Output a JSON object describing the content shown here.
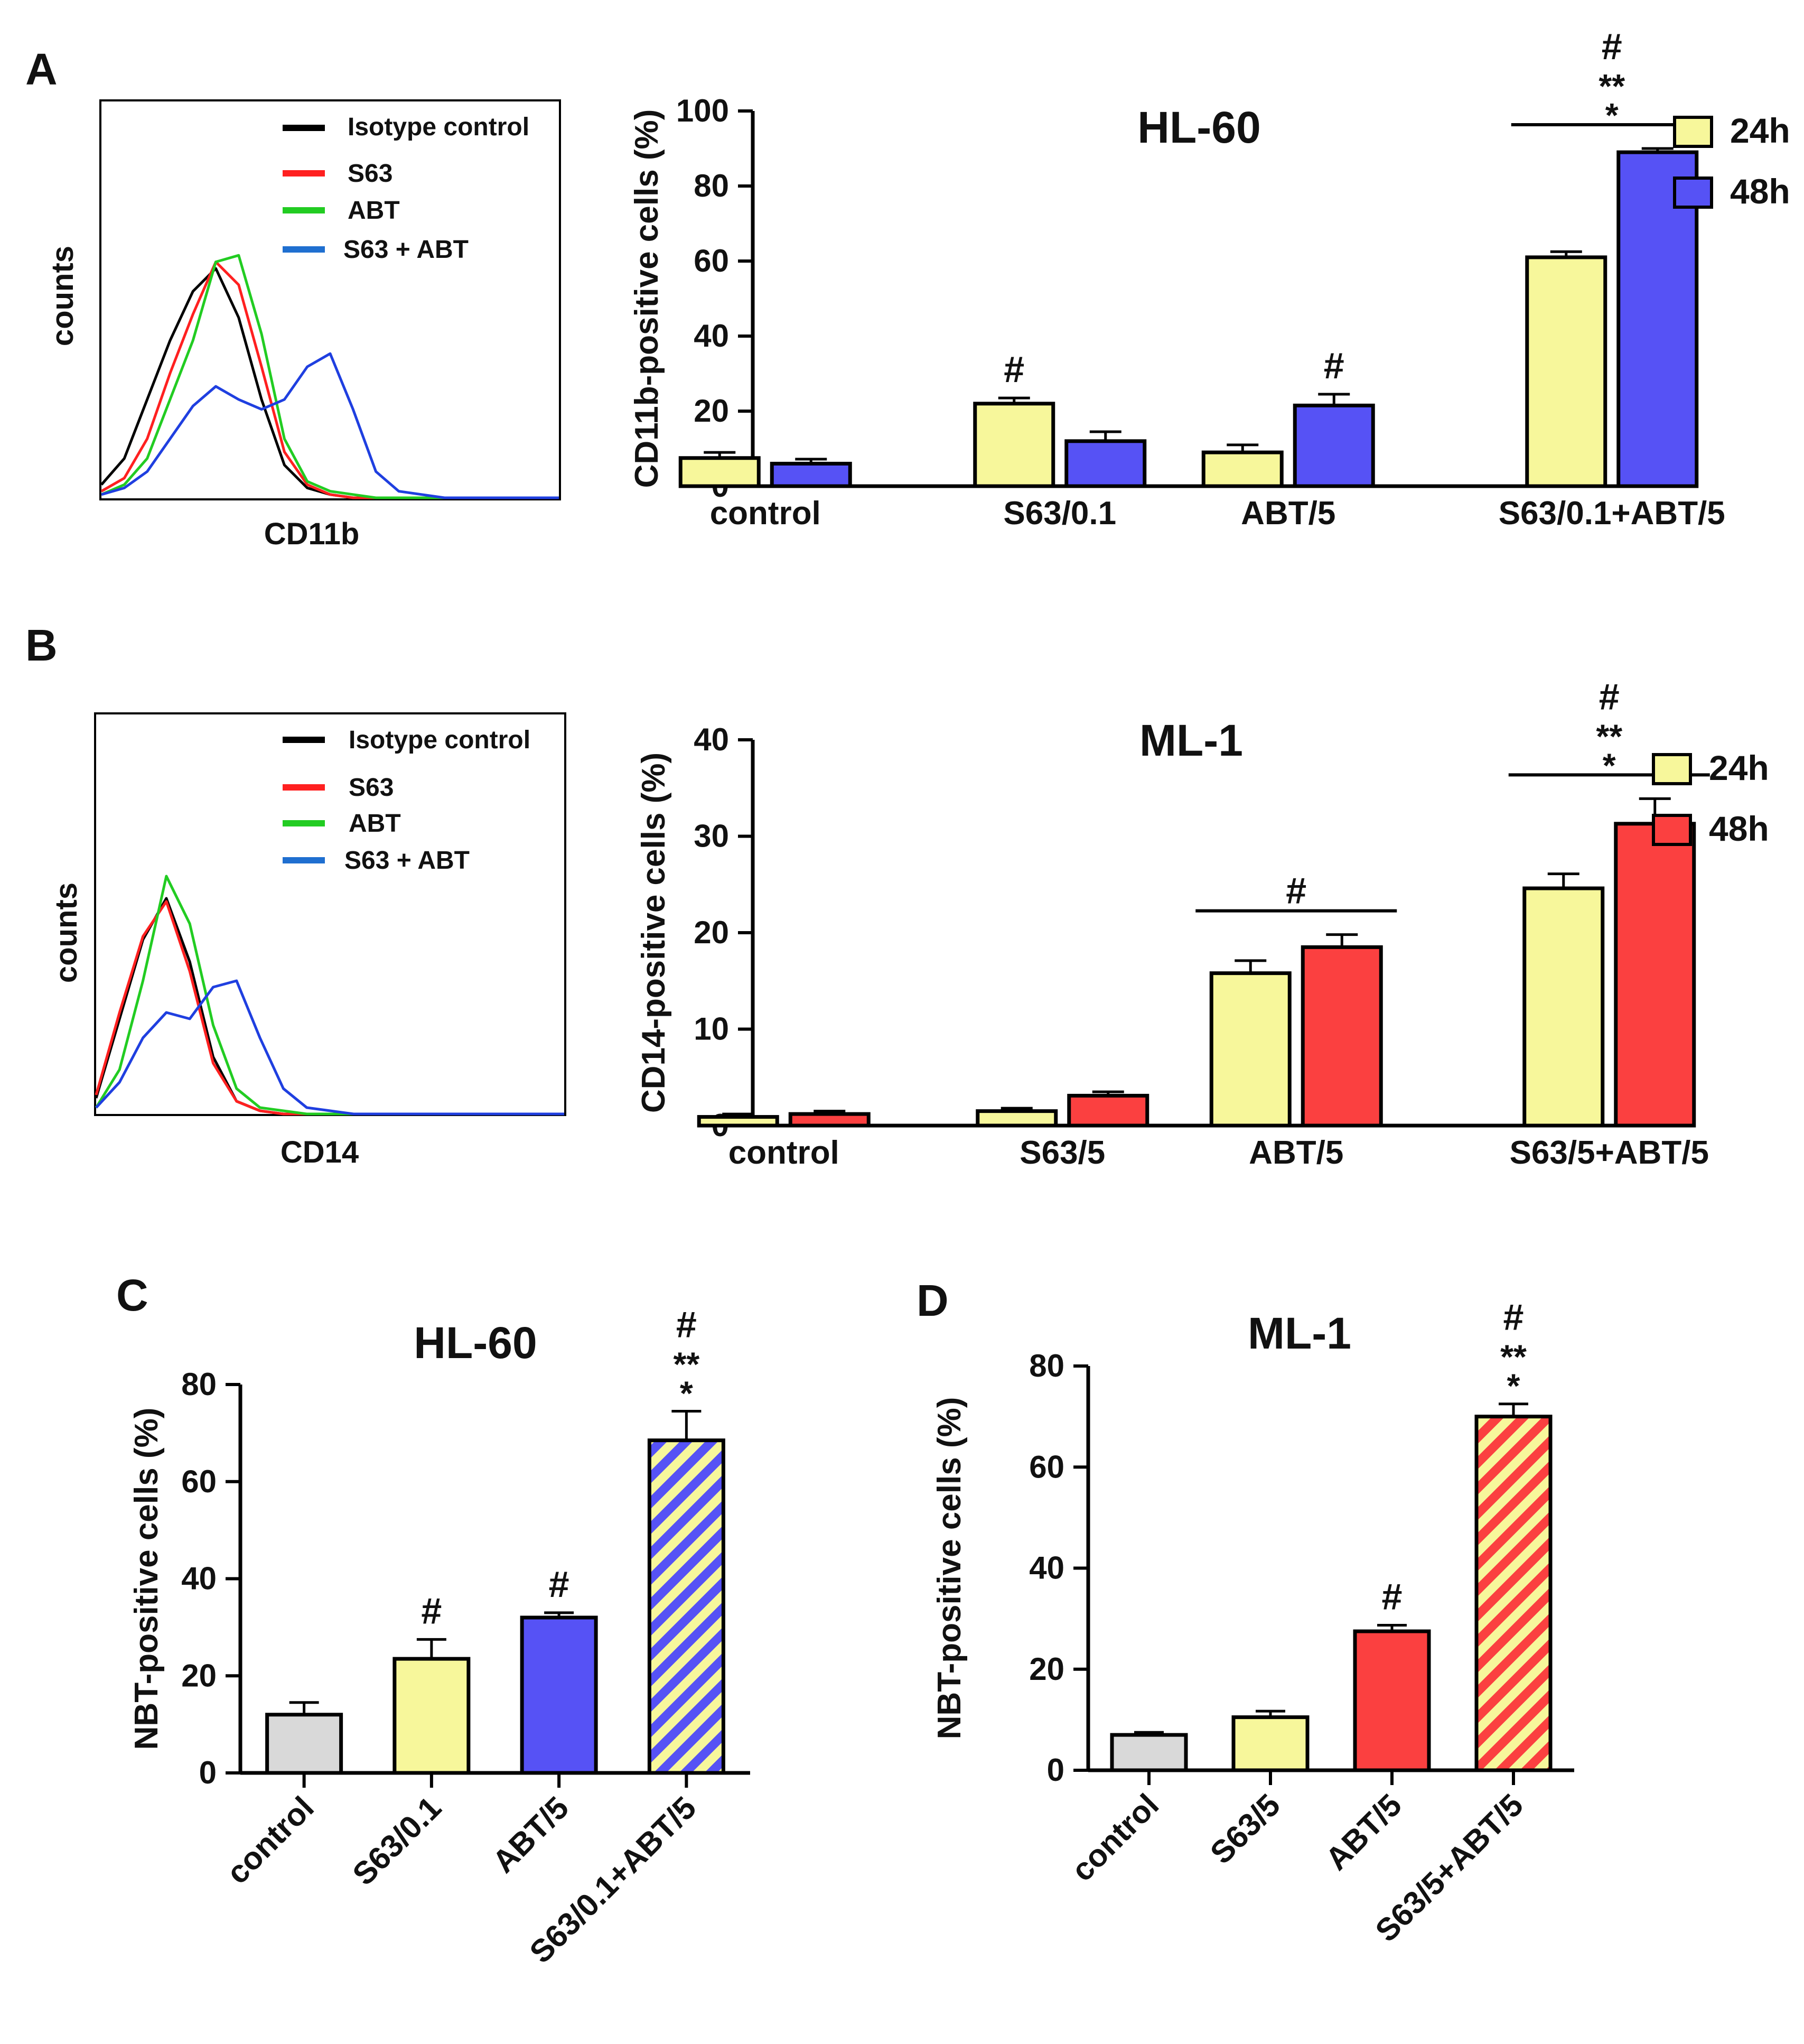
{
  "colors": {
    "yellow": "#f7f79b",
    "blue": "#5652f5",
    "red": "#fb4040",
    "gray": "#d9d9d9",
    "hist_black": "#000000",
    "hist_red": "#ff2020",
    "hist_green": "#22cc22",
    "hist_blue": "#1f3fe0"
  },
  "chart_data": [
    {
      "panel": "A",
      "type": "line",
      "subtype": "flow-cytometry-histogram",
      "xlabel": "CD11b",
      "ylabel": "counts",
      "legend": [
        "Isotype control",
        "S63",
        "ABT",
        "S63 + ABT"
      ],
      "legend_colors": [
        "hist_black",
        "hist_red",
        "hist_green",
        "hist_blue"
      ],
      "legend_position": "top-right",
      "axis_ticks": "none",
      "x": [
        0,
        5,
        10,
        15,
        20,
        25,
        30,
        35,
        40,
        45,
        50,
        55,
        60,
        65,
        70,
        75,
        80,
        85,
        90,
        95,
        100
      ],
      "series": [
        {
          "name": "Isotype control",
          "color": "hist_black",
          "values": [
            0.04,
            0.12,
            0.3,
            0.48,
            0.63,
            0.7,
            0.55,
            0.3,
            0.1,
            0.03,
            0.01,
            0,
            0,
            0,
            0,
            0,
            0,
            0,
            0,
            0,
            0
          ]
        },
        {
          "name": "S63",
          "color": "hist_red",
          "values": [
            0.02,
            0.06,
            0.18,
            0.38,
            0.56,
            0.72,
            0.65,
            0.4,
            0.14,
            0.04,
            0.01,
            0,
            0,
            0,
            0,
            0,
            0,
            0,
            0,
            0,
            0
          ]
        },
        {
          "name": "ABT",
          "color": "hist_green",
          "values": [
            0.01,
            0.04,
            0.12,
            0.3,
            0.48,
            0.72,
            0.74,
            0.5,
            0.18,
            0.05,
            0.02,
            0.01,
            0,
            0,
            0,
            0,
            0,
            0,
            0,
            0,
            0
          ]
        },
        {
          "name": "S63 + ABT",
          "color": "hist_blue",
          "values": [
            0.01,
            0.03,
            0.08,
            0.18,
            0.28,
            0.34,
            0.3,
            0.27,
            0.3,
            0.4,
            0.44,
            0.27,
            0.08,
            0.02,
            0.01,
            0,
            0,
            0,
            0,
            0,
            0
          ]
        }
      ]
    },
    {
      "panel": "A",
      "type": "bar",
      "title": "HL-60",
      "xlabel": "",
      "ylabel": "CD11b-positive cells (%)",
      "ylim": [
        0,
        100
      ],
      "yticks": [
        "0",
        "20",
        "40",
        "60",
        "80",
        "100"
      ],
      "categories": [
        "control",
        "S63/0.1",
        "ABT/5",
        "S63/0.1+ABT/5"
      ],
      "legend_position": "top-right",
      "series": [
        {
          "name": "24h",
          "color": "yellow",
          "values": [
            7.5,
            22,
            9,
            61
          ],
          "errors": [
            1.5,
            1.5,
            2,
            1.5
          ]
        },
        {
          "name": "48h",
          "color": "blue",
          "values": [
            6,
            12,
            21.5,
            89
          ],
          "errors": [
            1.2,
            2.5,
            3,
            1
          ]
        }
      ],
      "annotations": [
        {
          "category": 1,
          "series": 0,
          "labels": [
            "#"
          ]
        },
        {
          "category": 2,
          "series": 1,
          "labels": [
            "#"
          ]
        },
        {
          "category": 3,
          "series": "both",
          "labels": [
            "#",
            "**",
            "*"
          ]
        }
      ]
    },
    {
      "panel": "B",
      "type": "line",
      "subtype": "flow-cytometry-histogram",
      "xlabel": "CD14",
      "ylabel": "counts",
      "legend": [
        "Isotype control",
        "S63",
        "ABT",
        "S63 + ABT"
      ],
      "legend_colors": [
        "hist_black",
        "hist_red",
        "hist_green",
        "hist_blue"
      ],
      "legend_position": "top-right",
      "axis_ticks": "none",
      "x": [
        0,
        5,
        10,
        15,
        20,
        25,
        30,
        35,
        40,
        45,
        50,
        55,
        60,
        65,
        70,
        75,
        80,
        85,
        90,
        95,
        100
      ],
      "series": [
        {
          "name": "Isotype control",
          "color": "hist_black",
          "values": [
            0.05,
            0.3,
            0.55,
            0.68,
            0.48,
            0.18,
            0.04,
            0.01,
            0,
            0,
            0,
            0,
            0,
            0,
            0,
            0,
            0,
            0,
            0,
            0,
            0
          ]
        },
        {
          "name": "S63",
          "color": "hist_red",
          "values": [
            0.06,
            0.32,
            0.56,
            0.67,
            0.45,
            0.16,
            0.04,
            0.01,
            0,
            0,
            0,
            0,
            0,
            0,
            0,
            0,
            0,
            0,
            0,
            0,
            0
          ]
        },
        {
          "name": "ABT",
          "color": "hist_green",
          "values": [
            0.02,
            0.14,
            0.42,
            0.75,
            0.6,
            0.28,
            0.08,
            0.02,
            0.01,
            0,
            0,
            0,
            0,
            0,
            0,
            0,
            0,
            0,
            0,
            0,
            0
          ]
        },
        {
          "name": "S63 + ABT",
          "color": "hist_blue",
          "values": [
            0.02,
            0.1,
            0.24,
            0.32,
            0.3,
            0.4,
            0.42,
            0.24,
            0.08,
            0.02,
            0.01,
            0,
            0,
            0,
            0,
            0,
            0,
            0,
            0,
            0,
            0
          ]
        }
      ]
    },
    {
      "panel": "B",
      "type": "bar",
      "title": "ML-1",
      "xlabel": "",
      "ylabel": "CD14-positive cells (%)",
      "ylim": [
        0,
        40
      ],
      "yticks": [
        "0",
        "10",
        "20",
        "30",
        "40"
      ],
      "categories": [
        "control",
        "S63/5",
        "ABT/5",
        "S63/5+ABT/5"
      ],
      "legend_position": "top-right",
      "series": [
        {
          "name": "24h",
          "color": "yellow",
          "values": [
            0.9,
            1.5,
            15.8,
            24.6
          ],
          "errors": [
            0.3,
            0.3,
            1.3,
            1.5
          ]
        },
        {
          "name": "48h",
          "color": "red",
          "values": [
            1.2,
            3.1,
            18.5,
            31.3
          ],
          "errors": [
            0.3,
            0.4,
            1.3,
            2.6
          ]
        }
      ],
      "annotations": [
        {
          "category": 2,
          "series": "both",
          "labels": [
            "#"
          ]
        },
        {
          "category": 3,
          "series": "both",
          "labels": [
            "#",
            "**",
            "*"
          ]
        }
      ]
    },
    {
      "panel": "C",
      "type": "bar",
      "title": "HL-60",
      "xlabel": "",
      "ylabel": "NBT-positive cells (%)",
      "ylim": [
        0,
        80
      ],
      "yticks": [
        "0",
        "20",
        "40",
        "60",
        "80"
      ],
      "categories": [
        "control",
        "S63/0.1",
        "ABT/5",
        "S63/0.1+ABT/5"
      ],
      "values": [
        12,
        23.5,
        32,
        68.5
      ],
      "errors": [
        2.5,
        4,
        1,
        6
      ],
      "colors": [
        "gray",
        "yellow",
        "blue",
        "hatch-yellow-blue"
      ],
      "annotations": [
        {
          "category": 1,
          "labels": [
            "#"
          ]
        },
        {
          "category": 2,
          "labels": [
            "#"
          ]
        },
        {
          "category": 3,
          "labels": [
            "#",
            "**",
            "*"
          ]
        }
      ]
    },
    {
      "panel": "D",
      "type": "bar",
      "title": "ML-1",
      "xlabel": "",
      "ylabel": "NBT-positive cells (%)",
      "ylim": [
        0,
        80
      ],
      "yticks": [
        "0",
        "20",
        "40",
        "60",
        "80"
      ],
      "categories": [
        "control",
        "S63/5",
        "ABT/5",
        "S63/5+ABT/5"
      ],
      "values": [
        7,
        10.5,
        27.5,
        70
      ],
      "errors": [
        0.5,
        1.2,
        1.2,
        2.5
      ],
      "colors": [
        "gray",
        "yellow",
        "red",
        "hatch-yellow-red"
      ],
      "annotations": [
        {
          "category": 2,
          "labels": [
            "#"
          ]
        },
        {
          "category": 3,
          "labels": [
            "#",
            "**",
            "*"
          ]
        }
      ]
    }
  ],
  "panel_labels": [
    "A",
    "B",
    "C",
    "D"
  ]
}
